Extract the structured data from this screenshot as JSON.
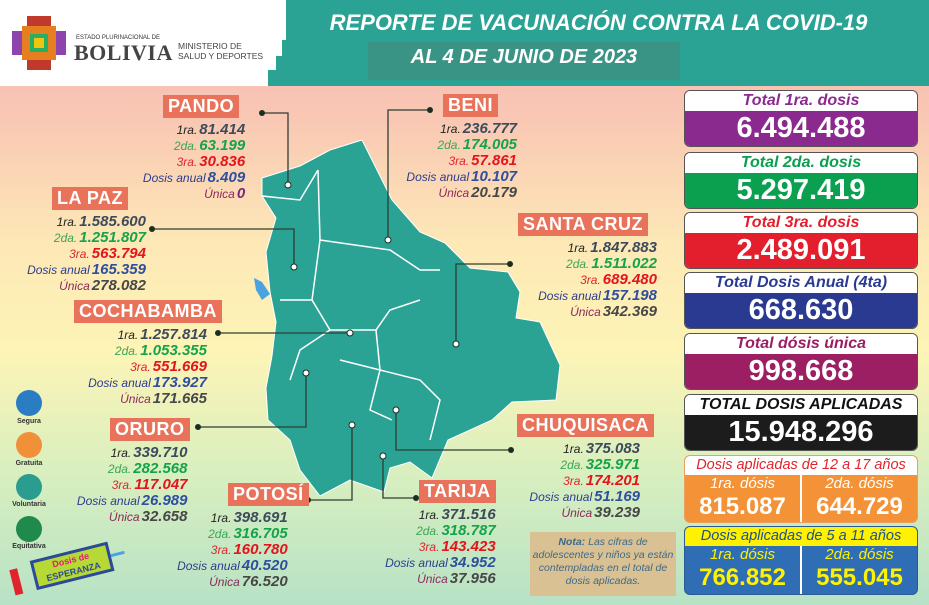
{
  "header": {
    "org_top": "ESTADO PLURINACIONAL DE",
    "org_name": "BOLIVIA",
    "ministry_line1": "MINISTERIO DE",
    "ministry_line2": "SALUD Y DEPORTES",
    "title": "REPORTE DE VACUNACIÓN CONTRA LA COVID-19",
    "subtitle": "AL 4 DE JUNIO  DE 2023"
  },
  "labels": {
    "d1": "1ra.",
    "d2": "2da.",
    "d3": "3ra.",
    "anual": "Dosis anual",
    "unica": "Única"
  },
  "departments": [
    {
      "name": "PANDO",
      "d1": "81.414",
      "d2": "63.199",
      "d3": "30.836",
      "anual": "8.409",
      "unica": "0"
    },
    {
      "name": "LA PAZ",
      "d1": "1.585.600",
      "d2": "1.251.807",
      "d3": "563.794",
      "anual": "165.359",
      "unica": "278.082"
    },
    {
      "name": "COCHABAMBA",
      "d1": "1.257.814",
      "d2": "1.053.355",
      "d3": "551.669",
      "anual": "173.927",
      "unica": "171.665"
    },
    {
      "name": "ORURO",
      "d1": "339.710",
      "d2": "282.568",
      "d3": "117.047",
      "anual": "26.989",
      "unica": "32.658"
    },
    {
      "name": "POTOSÍ",
      "d1": "398.691",
      "d2": "316.705",
      "d3": "160.780",
      "anual": "40.520",
      "unica": "76.520"
    },
    {
      "name": "TARIJA",
      "d1": "371.516",
      "d2": "318.787",
      "d3": "143.423",
      "anual": "34.952",
      "unica": "37.956"
    },
    {
      "name": "CHUQUISACA",
      "d1": "375.083",
      "d2": "325.971",
      "d3": "174.201",
      "anual": "51.169",
      "unica": "39.239"
    },
    {
      "name": "SANTA CRUZ",
      "d1": "1.847.883",
      "d2": "1.511.022",
      "d3": "689.480",
      "anual": "157.198",
      "unica": "342.369"
    },
    {
      "name": "BENI",
      "d1": "236.777",
      "d2": "174.005",
      "d3": "57.861",
      "anual": "10.107",
      "unica": "20.179"
    }
  ],
  "totals": [
    {
      "label": "Total 1ra. dosis",
      "value": "6.494.488",
      "color": "#8b2a8e"
    },
    {
      "label": "Total 2da. dosis",
      "value": "5.297.419",
      "color": "#0aa04f"
    },
    {
      "label": "Total 3ra. dosis",
      "value": "2.489.091",
      "color": "#e31e2d"
    },
    {
      "label": "Total Dosis Anual (4ta)",
      "value": "668.630",
      "color": "#2b3a91"
    },
    {
      "label": "Total dósis única",
      "value": "998.668",
      "color": "#9b1f62"
    },
    {
      "label": "TOTAL DOSIS APLICADAS",
      "value": "15.948.296",
      "color": "#1c1c1c"
    }
  ],
  "age_12_17": {
    "title": "Dosis aplicadas de 12 a 17 años",
    "d1_label": "1ra. dósis",
    "d1": "815.087",
    "d2_label": "2da. dósis",
    "d2": "644.729",
    "color": "#f39237"
  },
  "age_5_11": {
    "title": "Dosis aplicadas de 5 a 11 años",
    "d1_label": "1ra. dósis",
    "d1": "766.852",
    "d2_label": "2da. dósis",
    "d2": "555.045",
    "color": "#2f6eb5",
    "header_color": "#fff200"
  },
  "values": [
    {
      "label": "Segura",
      "icon": "shield-check-icon",
      "color": "#2a7dc2"
    },
    {
      "label": "Gratuita",
      "icon": "smile-icon",
      "color": "#f0913a"
    },
    {
      "label": "Voluntaria",
      "icon": "raised-hand-icon",
      "color": "#2a9d8f"
    },
    {
      "label": "Equitativa",
      "icon": "scales-icon",
      "color": "#1f8a4c"
    }
  ],
  "campaign": {
    "logo_text_1": "Dosis de",
    "logo_text_2": "ESPERANZA"
  },
  "note": {
    "bold": "Nota:",
    "text": " Las cifras de adolescentes y niños ya están contempladas en el total de dosis aplicadas."
  },
  "map_color": "#2aa394"
}
